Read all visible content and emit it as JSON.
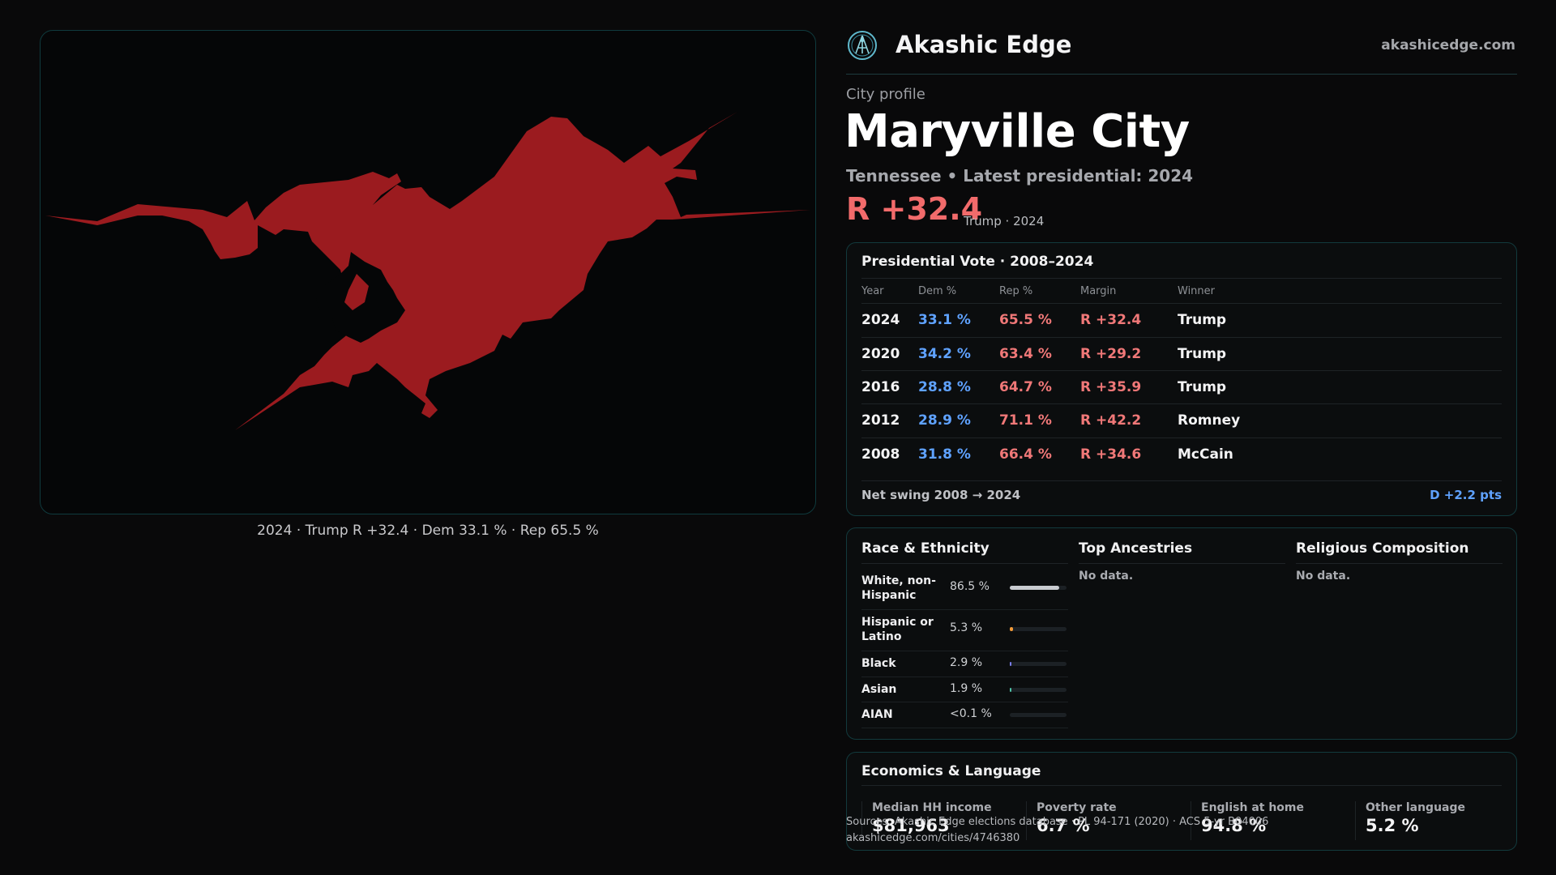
{
  "brand": {
    "name": "Akashic Edge",
    "url": "akashicedge.com"
  },
  "profile": {
    "eyebrow": "City profile",
    "city": "Maryville City",
    "subline": "Tennessee • Latest presidential: 2024",
    "margin": "R +32.4",
    "margin_note": "Trump · 2024"
  },
  "map": {
    "caption": "2024 · Trump R +32.4 · Dem 33.1 % · Rep 65.5 %",
    "fill_color": "#9b1b1f"
  },
  "presidential": {
    "title": "Presidential Vote · 2008–2024",
    "headers": {
      "year": "Year",
      "dem": "Dem %",
      "rep": "Rep %",
      "margin": "Margin",
      "winner": "Winner"
    },
    "rows": [
      {
        "year": "2024",
        "dem": "33.1 %",
        "rep": "65.5 %",
        "margin": "R +32.4",
        "winner": "Trump"
      },
      {
        "year": "2020",
        "dem": "34.2 %",
        "rep": "63.4 %",
        "margin": "R +29.2",
        "winner": "Trump"
      },
      {
        "year": "2016",
        "dem": "28.8 %",
        "rep": "64.7 %",
        "margin": "R +35.9",
        "winner": "Trump"
      },
      {
        "year": "2012",
        "dem": "28.9 %",
        "rep": "71.1 %",
        "margin": "R +42.2",
        "winner": "Romney"
      },
      {
        "year": "2008",
        "dem": "31.8 %",
        "rep": "66.4 %",
        "margin": "R +34.6",
        "winner": "McCain"
      }
    ],
    "swing_label": "Net swing 2008 → 2024",
    "swing_value": "D +2.2 pts"
  },
  "race": {
    "title": "Race & Ethnicity",
    "rows": [
      {
        "label": "White, non-Hispanic",
        "value": "86.5 %",
        "share": 0.865,
        "color": "#c9ccd1"
      },
      {
        "label": "Hispanic or Latino",
        "value": "5.3 %",
        "share": 0.053,
        "color": "#f29a38"
      },
      {
        "label": "Black",
        "value": "2.9 %",
        "share": 0.029,
        "color": "#7b7ef0"
      },
      {
        "label": "Asian",
        "value": "1.9 %",
        "share": 0.019,
        "color": "#4fc3a8"
      },
      {
        "label": "AIAN",
        "value": "<0.1 %",
        "share": 0.0,
        "color": "#c9ccd1"
      }
    ]
  },
  "ancestries": {
    "title": "Top Ancestries",
    "empty": "No data."
  },
  "religion": {
    "title": "Religious Composition",
    "empty": "No data."
  },
  "economics": {
    "title": "Economics & Language",
    "stats": [
      {
        "label": "Median HH income",
        "value": "$81,963"
      },
      {
        "label": "Poverty rate",
        "value": "6.7 %"
      },
      {
        "label": "English at home",
        "value": "94.8 %"
      },
      {
        "label": "Other language",
        "value": "5.2 %"
      }
    ]
  },
  "source": {
    "line1": "Sources: Akashic Edge elections database · PL 94-171 (2020) · ACS 5-yr B04006",
    "line2": "akashicedge.com/cities/4746380"
  }
}
